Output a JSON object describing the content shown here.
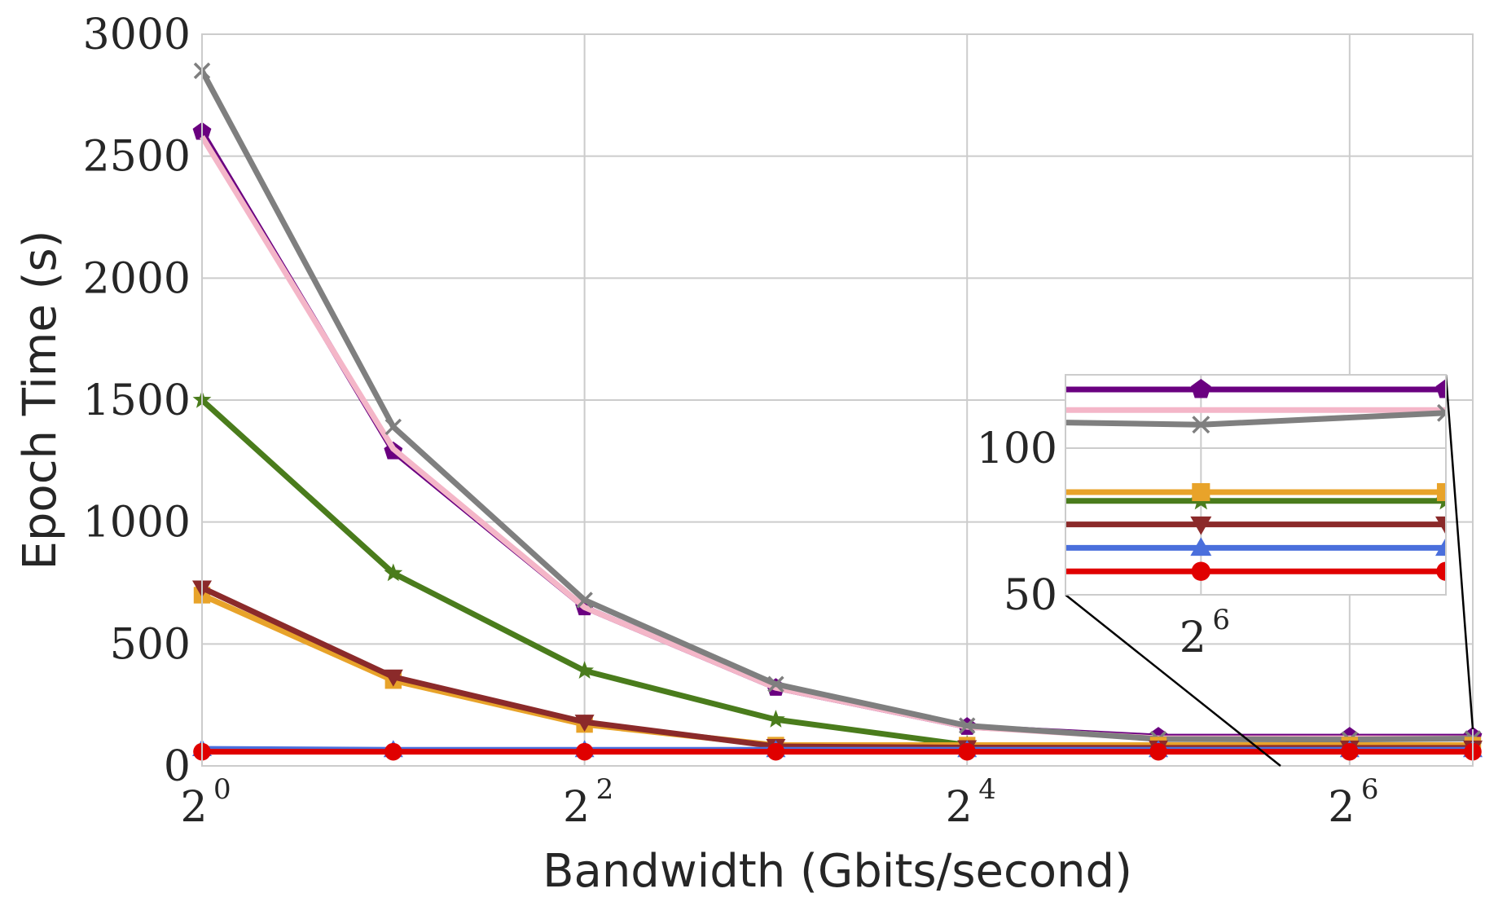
{
  "chart_data": {
    "type": "line",
    "title": "",
    "xlabel": "Bandwidth (Gbits/second)",
    "ylabel": "Epoch Time (s)",
    "x_scale": "log2",
    "x": [
      1,
      2,
      4,
      8,
      16,
      32,
      64,
      100
    ],
    "xlim": [
      1,
      100
    ],
    "ylim": [
      0,
      3000
    ],
    "xticks": [
      {
        "value": 1,
        "base": "2",
        "exp": "0"
      },
      {
        "value": 4,
        "base": "2",
        "exp": "2"
      },
      {
        "value": 16,
        "base": "2",
        "exp": "4"
      },
      {
        "value": 64,
        "base": "2",
        "exp": "6"
      }
    ],
    "yticks": [
      {
        "value": 0,
        "label": "0"
      },
      {
        "value": 500,
        "label": "500"
      },
      {
        "value": 1000,
        "label": "1000"
      },
      {
        "value": 1500,
        "label": "1500"
      },
      {
        "value": 2000,
        "label": "2000"
      },
      {
        "value": 2500,
        "label": "2500"
      },
      {
        "value": 3000,
        "label": "3000"
      }
    ],
    "grid": true,
    "series": [
      {
        "color": "#6a0080",
        "marker": "pentagon",
        "values": [
          2600,
          1290,
          650,
          320,
          160,
          120,
          120,
          120
        ]
      },
      {
        "color": "#f4b6c8",
        "marker": "none",
        "values": [
          2580,
          1300,
          650,
          320,
          160,
          113,
          113,
          113
        ]
      },
      {
        "color": "#7f7f7f",
        "marker": "x",
        "values": [
          2850,
          1390,
          680,
          335,
          165,
          110,
          108,
          112
        ]
      },
      {
        "color": "#4a7c1c",
        "marker": "star",
        "values": [
          1500,
          790,
          390,
          190,
          85,
          82,
          82,
          82
        ]
      },
      {
        "color": "#e8a32a",
        "marker": "square",
        "values": [
          700,
          350,
          170,
          85,
          85,
          85,
          85,
          85
        ]
      },
      {
        "color": "#8b2a2a",
        "marker": "triangle-down",
        "values": [
          730,
          365,
          180,
          80,
          75,
          74,
          74,
          74
        ]
      },
      {
        "color": "#4a6fdc",
        "marker": "triangle-up",
        "values": [
          70,
          66,
          66,
          66,
          66,
          66,
          66,
          66
        ]
      },
      {
        "color": "#e00000",
        "marker": "circle",
        "values": [
          58,
          58,
          58,
          58,
          58,
          58,
          58,
          58
        ]
      }
    ],
    "inset": {
      "xlim": [
        50,
        100
      ],
      "ylim": [
        50,
        125
      ],
      "xticks": [
        {
          "value": 64,
          "base": "2",
          "exp": "6"
        }
      ],
      "yticks": [
        {
          "value": 50,
          "label": "50"
        },
        {
          "value": 100,
          "label": "100"
        }
      ]
    }
  }
}
